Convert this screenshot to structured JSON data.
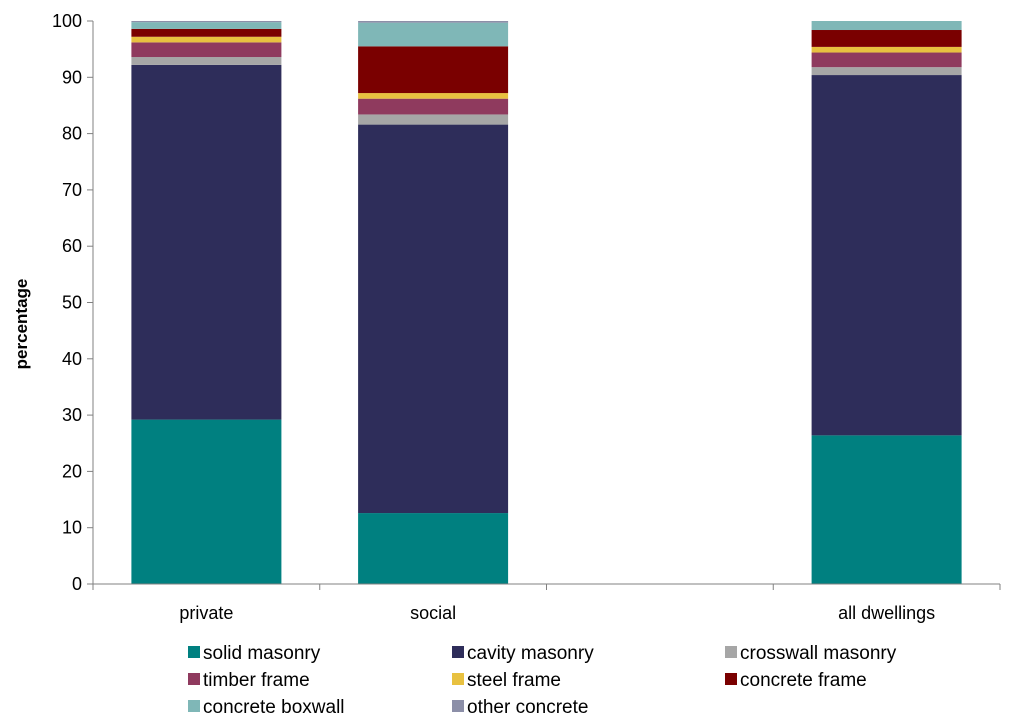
{
  "chart_data": {
    "type": "bar",
    "stacked": true,
    "title": "",
    "xlabel": "",
    "ylabel": "percentage",
    "ylim": [
      0,
      100
    ],
    "yticks": [
      0,
      10,
      20,
      30,
      40,
      50,
      60,
      70,
      80,
      90,
      100
    ],
    "grid": false,
    "legend_position": "bottom",
    "slots": [
      "private",
      "social",
      "",
      "all dwellings"
    ],
    "categories": [
      "private",
      "social",
      "all dwellings"
    ],
    "series": [
      {
        "name": "solid masonry",
        "color": "#008080",
        "values": [
          29.2,
          12.6,
          26.4
        ]
      },
      {
        "name": "cavity masonry",
        "color": "#2E2D5A",
        "values": [
          63.0,
          69.0,
          64.0
        ]
      },
      {
        "name": "crosswall masonry",
        "color": "#A6A6A6",
        "values": [
          1.4,
          1.8,
          1.4
        ]
      },
      {
        "name": "timber frame",
        "color": "#8F3A5E",
        "values": [
          2.6,
          2.8,
          2.6
        ]
      },
      {
        "name": "steel frame",
        "color": "#E8C140",
        "values": [
          1.0,
          1.0,
          1.0
        ]
      },
      {
        "name": "concrete frame",
        "color": "#7A0000",
        "values": [
          1.4,
          8.3,
          3.0
        ]
      },
      {
        "name": "concrete boxwall",
        "color": "#7FB7B7",
        "values": [
          1.2,
          4.2,
          1.6
        ]
      },
      {
        "name": "other concrete",
        "color": "#8C8FA8",
        "values": [
          0.2,
          0.3,
          0.0
        ]
      }
    ]
  }
}
